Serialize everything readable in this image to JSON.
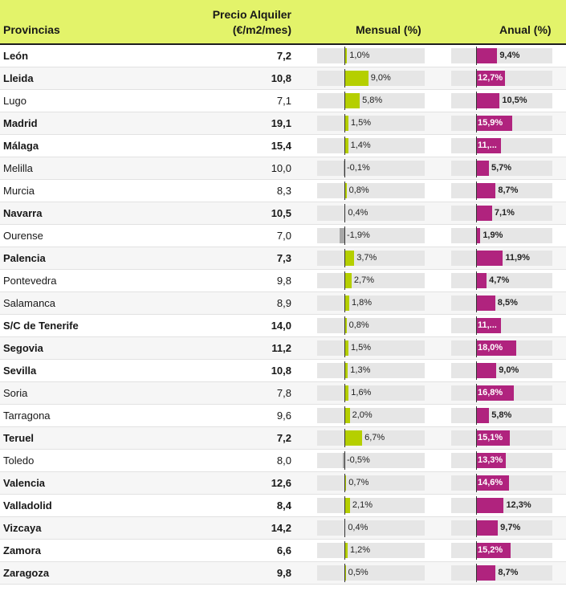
{
  "header": {
    "col_provincias": "Provincias",
    "col_precio_line1": "Precio Alquiler",
    "col_precio_line2": "(€/m2/mes)",
    "col_mensual": "Mensual (%)",
    "col_anual": "Anual (%)"
  },
  "colors": {
    "header_bg": "#e3f36a",
    "mensual_positive": "#b5cf00",
    "mensual_negative": "#a8a8a8",
    "anual_bar": "#b0237e",
    "track": "#e6e6e6"
  },
  "chart_data": {
    "type": "table",
    "columns": [
      "Provincias",
      "Precio Alquiler (€/m2/mes)",
      "Mensual (%)",
      "Anual (%)"
    ],
    "rows": [
      {
        "provincia": "León",
        "precio": "7,2",
        "mensual": 1.0,
        "mensual_label": "1,0%",
        "anual": 9.4,
        "anual_label": "9,4%",
        "bold": true
      },
      {
        "provincia": "Lleida",
        "precio": "10,8",
        "mensual": 9.0,
        "mensual_label": "9,0%",
        "anual": 12.7,
        "anual_label": "12,7%",
        "bold": true
      },
      {
        "provincia": "Lugo",
        "precio": "7,1",
        "mensual": 5.8,
        "mensual_label": "5,8%",
        "anual": 10.5,
        "anual_label": "10,5%",
        "bold": false
      },
      {
        "provincia": "Madrid",
        "precio": "19,1",
        "mensual": 1.5,
        "mensual_label": "1,5%",
        "anual": 15.9,
        "anual_label": "15,9%",
        "bold": true
      },
      {
        "provincia": "Málaga",
        "precio": "15,4",
        "mensual": 1.4,
        "mensual_label": "1,4%",
        "anual": 11.0,
        "anual_label": "11,...",
        "bold": true
      },
      {
        "provincia": "Melilla",
        "precio": "10,0",
        "mensual": -0.1,
        "mensual_label": "-0,1%",
        "anual": 5.7,
        "anual_label": "5,7%",
        "bold": false
      },
      {
        "provincia": "Murcia",
        "precio": "8,3",
        "mensual": 0.8,
        "mensual_label": "0,8%",
        "anual": 8.7,
        "anual_label": "8,7%",
        "bold": false
      },
      {
        "provincia": "Navarra",
        "precio": "10,5",
        "mensual": 0.4,
        "mensual_label": "0,4%",
        "anual": 7.1,
        "anual_label": "7,1%",
        "bold": true
      },
      {
        "provincia": "Ourense",
        "precio": "7,0",
        "mensual": -1.9,
        "mensual_label": "-1,9%",
        "anual": 1.9,
        "anual_label": "1,9%",
        "bold": false
      },
      {
        "provincia": "Palencia",
        "precio": "7,3",
        "mensual": 3.7,
        "mensual_label": "3,7%",
        "anual": 11.9,
        "anual_label": "11,9%",
        "bold": true
      },
      {
        "provincia": "Pontevedra",
        "precio": "9,8",
        "mensual": 2.7,
        "mensual_label": "2,7%",
        "anual": 4.7,
        "anual_label": "4,7%",
        "bold": false
      },
      {
        "provincia": "Salamanca",
        "precio": "8,9",
        "mensual": 1.8,
        "mensual_label": "1,8%",
        "anual": 8.5,
        "anual_label": "8,5%",
        "bold": false
      },
      {
        "provincia": "S/C de Tenerife",
        "precio": "14,0",
        "mensual": 0.8,
        "mensual_label": "0,8%",
        "anual": 11.0,
        "anual_label": "11,...",
        "bold": true
      },
      {
        "provincia": "Segovia",
        "precio": "11,2",
        "mensual": 1.5,
        "mensual_label": "1,5%",
        "anual": 18.0,
        "anual_label": "18,0%",
        "bold": true
      },
      {
        "provincia": "Sevilla",
        "precio": "10,8",
        "mensual": 1.3,
        "mensual_label": "1,3%",
        "anual": 9.0,
        "anual_label": "9,0%",
        "bold": true
      },
      {
        "provincia": "Soria",
        "precio": "7,8",
        "mensual": 1.6,
        "mensual_label": "1,6%",
        "anual": 16.8,
        "anual_label": "16,8%",
        "bold": false
      },
      {
        "provincia": "Tarragona",
        "precio": "9,6",
        "mensual": 2.0,
        "mensual_label": "2,0%",
        "anual": 5.8,
        "anual_label": "5,8%",
        "bold": false
      },
      {
        "provincia": "Teruel",
        "precio": "7,2",
        "mensual": 6.7,
        "mensual_label": "6,7%",
        "anual": 15.1,
        "anual_label": "15,1%",
        "bold": true
      },
      {
        "provincia": "Toledo",
        "precio": "8,0",
        "mensual": -0.5,
        "mensual_label": "-0,5%",
        "anual": 13.3,
        "anual_label": "13,3%",
        "bold": false
      },
      {
        "provincia": "Valencia",
        "precio": "12,6",
        "mensual": 0.7,
        "mensual_label": "0,7%",
        "anual": 14.6,
        "anual_label": "14,6%",
        "bold": true
      },
      {
        "provincia": "Valladolid",
        "precio": "8,4",
        "mensual": 2.1,
        "mensual_label": "2,1%",
        "anual": 12.3,
        "anual_label": "12,3%",
        "bold": true
      },
      {
        "provincia": "Vizcaya",
        "precio": "14,2",
        "mensual": 0.4,
        "mensual_label": "0,4%",
        "anual": 9.7,
        "anual_label": "9,7%",
        "bold": true
      },
      {
        "provincia": "Zamora",
        "precio": "6,6",
        "mensual": 1.2,
        "mensual_label": "1,2%",
        "anual": 15.2,
        "anual_label": "15,2%",
        "bold": true
      },
      {
        "provincia": "Zaragoza",
        "precio": "9,8",
        "mensual": 0.5,
        "mensual_label": "0,5%",
        "anual": 8.7,
        "anual_label": "8,7%",
        "bold": true
      }
    ]
  }
}
